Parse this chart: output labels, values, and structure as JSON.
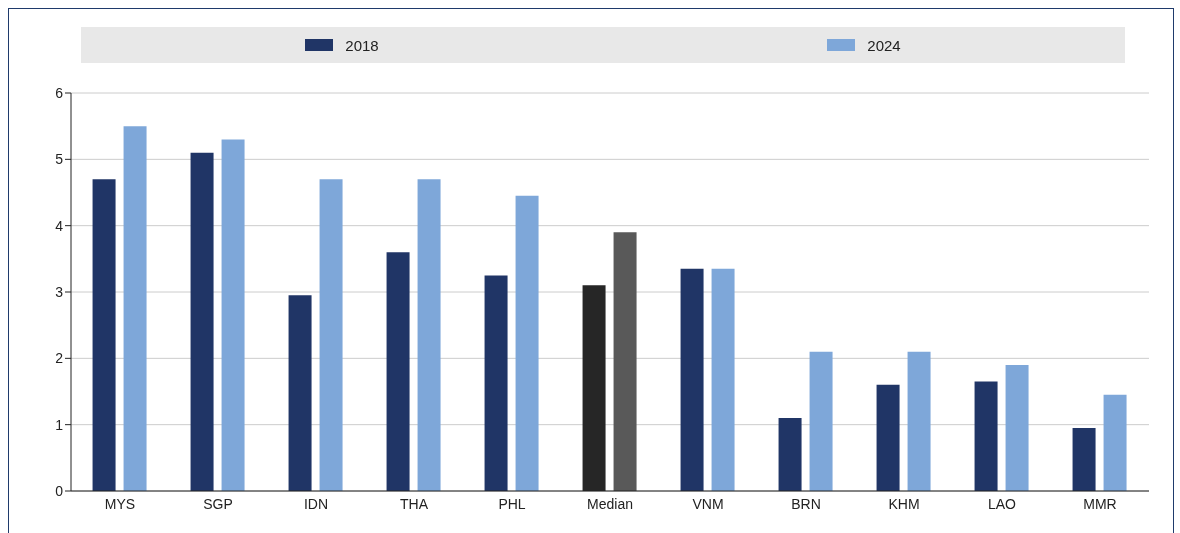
{
  "chart_data": {
    "type": "bar",
    "categories": [
      "MYS",
      "SGP",
      "IDN",
      "THA",
      "PHL",
      "Median",
      "VNM",
      "BRN",
      "KHM",
      "LAO",
      "MMR"
    ],
    "series": [
      {
        "name": "2018",
        "color": "#203566",
        "colors": [
          "#203566",
          "#203566",
          "#203566",
          "#203566",
          "#203566",
          "#262626",
          "#203566",
          "#203566",
          "#203566",
          "#203566",
          "#203566"
        ],
        "values": [
          4.7,
          5.1,
          2.95,
          3.6,
          3.25,
          3.1,
          3.35,
          1.1,
          1.6,
          1.65,
          0.95
        ]
      },
      {
        "name": "2024",
        "color": "#7ea7d9",
        "colors": [
          "#7ea7d9",
          "#7ea7d9",
          "#7ea7d9",
          "#7ea7d9",
          "#7ea7d9",
          "#595959",
          "#7ea7d9",
          "#7ea7d9",
          "#7ea7d9",
          "#7ea7d9",
          "#7ea7d9"
        ],
        "values": [
          5.5,
          5.3,
          4.7,
          4.7,
          4.45,
          3.9,
          3.35,
          2.1,
          2.1,
          1.9,
          1.45
        ]
      }
    ],
    "ylim": [
      0,
      6
    ],
    "yticks": [
      0,
      1,
      2,
      3,
      4,
      5,
      6
    ],
    "grid": "y",
    "legend": "top"
  }
}
